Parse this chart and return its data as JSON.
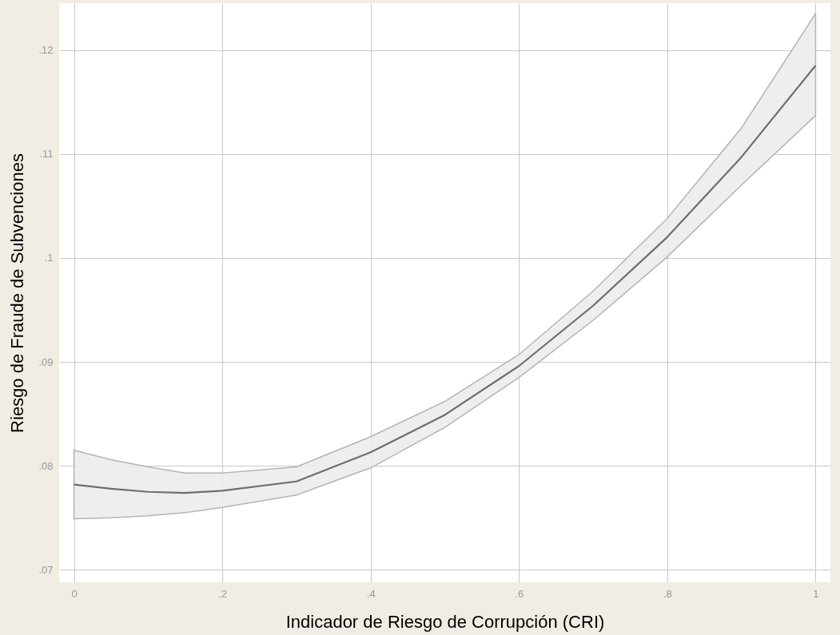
{
  "chart_data": {
    "type": "line",
    "xlabel": "Indicador de Riesgo de Corrupción (CRI)",
    "ylabel": "Riesgo de Fraude de Subvenciones",
    "x": [
      0,
      0.05,
      0.1,
      0.15,
      0.2,
      0.3,
      0.4,
      0.5,
      0.6,
      0.7,
      0.8,
      0.9,
      1
    ],
    "series": [
      {
        "color": "#6e6e6e",
        "values": [
          0.0782,
          0.0778,
          0.0775,
          0.0774,
          0.0776,
          0.0785,
          0.0813,
          0.0849,
          0.0896,
          0.0954,
          0.102,
          0.1097,
          0.1185
        ],
        "lower": [
          0.0749,
          0.075,
          0.0752,
          0.0755,
          0.076,
          0.0772,
          0.0798,
          0.0837,
          0.0885,
          0.094,
          0.1001,
          0.107,
          0.1137
        ],
        "upper": [
          0.0815,
          0.0806,
          0.0799,
          0.0793,
          0.0793,
          0.0799,
          0.0828,
          0.0862,
          0.0907,
          0.0968,
          0.1038,
          0.1125,
          0.1235
        ]
      }
    ],
    "xlim": [
      -0.02,
      1.02
    ],
    "ylim": [
      0.0688,
      0.1245
    ],
    "xticks": [
      0,
      {
        "value": 0.2,
        "label": ".2"
      },
      {
        "value": 0.4,
        "label": ".4"
      },
      {
        "value": 0.6,
        "label": ".6"
      },
      {
        "value": 0.8,
        "label": ".8"
      },
      1
    ],
    "yticks": [
      {
        "value": 0.07,
        "label": ".07"
      },
      {
        "value": 0.08,
        "label": ".08"
      },
      {
        "value": 0.09,
        "label": ".09"
      },
      {
        "value": 0.1,
        "label": ".1"
      },
      {
        "value": 0.11,
        "label": ".11"
      },
      {
        "value": 0.12,
        "label": ".12"
      }
    ],
    "grid": true,
    "marker": "none",
    "line_style": "solid"
  }
}
